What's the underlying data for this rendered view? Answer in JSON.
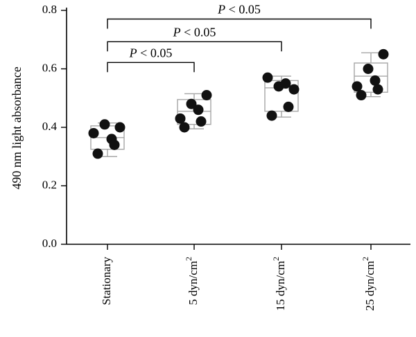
{
  "chart_data": {
    "type": "box-scatter",
    "ylabel": "490 nm light absorbance",
    "xlabel": "",
    "ylim": [
      0.0,
      0.8
    ],
    "yticks": [
      "0.0",
      "0.2",
      "0.4",
      "0.6",
      "0.8"
    ],
    "categories": [
      "Stationary",
      "5 dyn/cm²",
      "15 dyn/cm²",
      "25 dyn/cm²"
    ],
    "groups": [
      {
        "category": "Stationary",
        "points": [
          0.38,
          0.41,
          0.4,
          0.36,
          0.34,
          0.31
        ],
        "box": {
          "q1": 0.325,
          "median": 0.365,
          "q3": 0.405,
          "whisker_low": 0.3,
          "whisker_high": 0.415
        }
      },
      {
        "category": "5 dyn/cm²",
        "points": [
          0.43,
          0.48,
          0.51,
          0.46,
          0.42,
          0.4
        ],
        "box": {
          "q1": 0.41,
          "median": 0.455,
          "q3": 0.495,
          "whisker_low": 0.395,
          "whisker_high": 0.515
        }
      },
      {
        "category": "15 dyn/cm²",
        "points": [
          0.57,
          0.54,
          0.53,
          0.55,
          0.47,
          0.44
        ],
        "box": {
          "q1": 0.455,
          "median": 0.535,
          "q3": 0.56,
          "whisker_low": 0.435,
          "whisker_high": 0.575
        }
      },
      {
        "category": "25 dyn/cm²",
        "points": [
          0.54,
          0.6,
          0.65,
          0.56,
          0.53,
          0.51
        ],
        "box": {
          "q1": 0.52,
          "median": 0.575,
          "q3": 0.62,
          "whisker_low": 0.505,
          "whisker_high": 0.655
        }
      }
    ],
    "comparisons": [
      {
        "from": "Stationary",
        "to": "5 dyn/cm²",
        "label_p": "P",
        "label_rest": " < 0.05"
      },
      {
        "from": "Stationary",
        "to": "15 dyn/cm²",
        "label_p": "P",
        "label_rest": " < 0.05"
      },
      {
        "from": "Stationary",
        "to": "25 dyn/cm²",
        "label_p": "P",
        "label_rest": " < 0.05"
      }
    ],
    "grid": false,
    "legend": "none"
  }
}
